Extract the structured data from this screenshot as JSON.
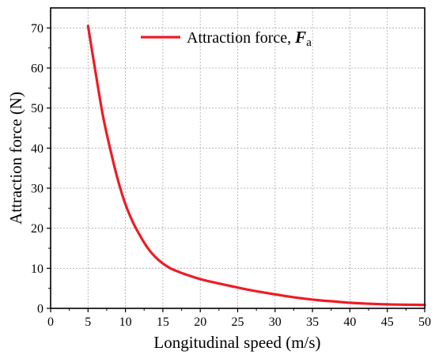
{
  "chart_data": {
    "type": "line",
    "xlabel": "Longitudinal speed (m/s)",
    "ylabel": "Attraction force (N)",
    "xlim": [
      0,
      50
    ],
    "ylim": [
      0,
      75
    ],
    "xticks": [
      0,
      5,
      10,
      15,
      20,
      25,
      30,
      35,
      40,
      45,
      50
    ],
    "yticks": [
      0,
      10,
      20,
      30,
      40,
      50,
      60,
      70
    ],
    "grid": true,
    "legend_position": "top-right",
    "series": [
      {
        "name_text": "Attraction force, ",
        "name_symbol": "F",
        "name_subscript": "a",
        "color": "#ee1c24",
        "x": [
          5,
          6,
          7,
          8,
          9,
          10,
          11,
          12,
          13,
          14,
          15,
          16,
          17,
          18,
          20,
          22,
          24,
          26,
          28,
          30,
          32,
          34,
          36,
          38,
          40,
          42,
          44,
          46,
          48,
          50
        ],
        "y": [
          70.5,
          59,
          48,
          39.5,
          32,
          26,
          21.5,
          18,
          15,
          12.8,
          11.2,
          10,
          9.2,
          8.5,
          7.3,
          6.4,
          5.6,
          4.8,
          4.1,
          3.5,
          2.9,
          2.4,
          2.0,
          1.7,
          1.4,
          1.2,
          1.05,
          0.95,
          0.9,
          0.85
        ]
      }
    ]
  }
}
